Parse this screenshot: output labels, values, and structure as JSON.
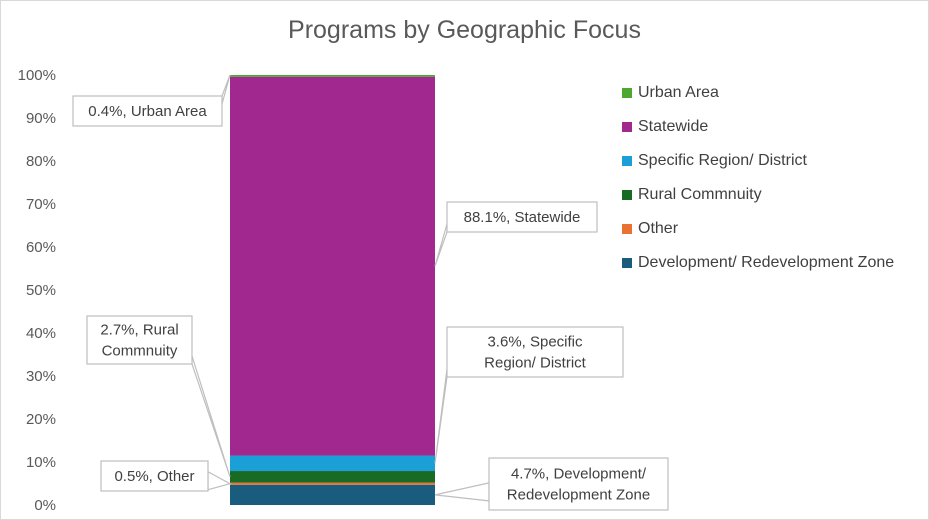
{
  "chart_data": {
    "type": "bar",
    "stacked": true,
    "percent": true,
    "title": "Programs by Geographic Focus",
    "xlabel": "",
    "ylabel": "",
    "ylim": [
      0,
      100
    ],
    "yticks": [
      "0%",
      "10%",
      "20%",
      "30%",
      "40%",
      "50%",
      "60%",
      "70%",
      "80%",
      "90%",
      "100%"
    ],
    "grid": false,
    "legend_position": "right",
    "series": [
      {
        "name": "Development/ Redevelopment Zone",
        "value": 4.7,
        "color": "#1a5c7e",
        "label": "4.7%, Development/ Redevelopment Zone"
      },
      {
        "name": "Other",
        "value": 0.5,
        "color": "#e97132",
        "label": "0.5%, Other"
      },
      {
        "name": "Rural Commnuity",
        "value": 2.7,
        "color": "#196b24",
        "label": "2.7%, Rural Commnuity"
      },
      {
        "name": "Specific Region/ District",
        "value": 3.6,
        "color": "#1a9fd6",
        "label": "3.6%, Specific Region/ District"
      },
      {
        "name": "Statewide",
        "value": 88.1,
        "color": "#a0288f",
        "label": "88.1%, Statewide"
      },
      {
        "name": "Urban Area",
        "value": 0.4,
        "color": "#4ea72e",
        "label": "0.4%, Urban Area"
      }
    ],
    "legend_order": [
      "Urban Area",
      "Statewide",
      "Specific Region/ District",
      "Rural Commnuity",
      "Other",
      "Development/ Redevelopment Zone"
    ]
  }
}
